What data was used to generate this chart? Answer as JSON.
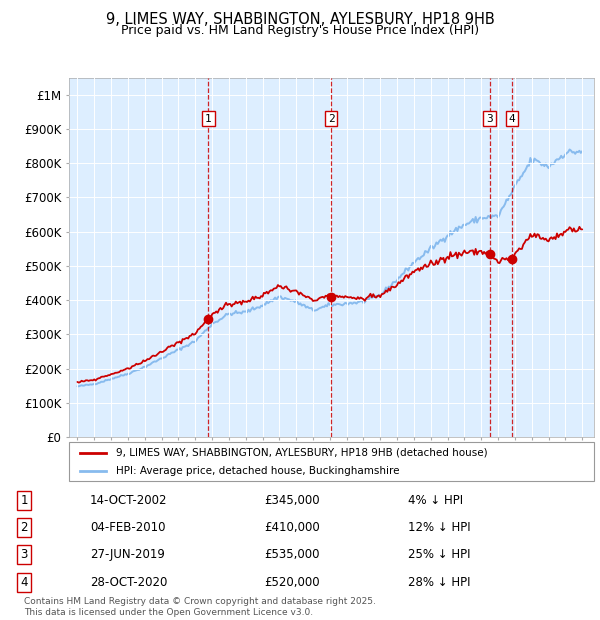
{
  "title": "9, LIMES WAY, SHABBINGTON, AYLESBURY, HP18 9HB",
  "subtitle": "Price paid vs. HM Land Registry's House Price Index (HPI)",
  "ylim": [
    0,
    1050000
  ],
  "yticks": [
    0,
    100000,
    200000,
    300000,
    400000,
    500000,
    600000,
    700000,
    800000,
    900000,
    1000000
  ],
  "ytick_labels": [
    "£0",
    "£100K",
    "£200K",
    "£300K",
    "£400K",
    "£500K",
    "£600K",
    "£700K",
    "£800K",
    "£900K",
    "£1M"
  ],
  "background_color": "#ffffff",
  "plot_bg_color": "#ddeeff",
  "grid_color": "#ffffff",
  "hpi_color": "#88bbee",
  "price_color": "#cc0000",
  "sale_decimal": [
    2002.79,
    2010.09,
    2019.49,
    2020.83
  ],
  "sale_prices": [
    345000,
    410000,
    535000,
    520000
  ],
  "sale_labels": [
    "1",
    "2",
    "3",
    "4"
  ],
  "legend_price_label": "9, LIMES WAY, SHABBINGTON, AYLESBURY, HP18 9HB (detached house)",
  "legend_hpi_label": "HPI: Average price, detached house, Buckinghamshire",
  "footer": "Contains HM Land Registry data © Crown copyright and database right 2025.\nThis data is licensed under the Open Government Licence v3.0.",
  "xlim_start": 1994.5,
  "xlim_end": 2025.7,
  "hpi_key_years": {
    "1995": 148000,
    "1996": 155000,
    "1997": 170000,
    "1998": 185000,
    "1999": 205000,
    "2000": 230000,
    "2001": 255000,
    "2002": 280000,
    "2003": 330000,
    "2004": 360000,
    "2005": 365000,
    "2006": 385000,
    "2007": 410000,
    "2008": 395000,
    "2009": 370000,
    "2010": 385000,
    "2011": 390000,
    "2012": 395000,
    "2013": 415000,
    "2014": 460000,
    "2015": 510000,
    "2016": 550000,
    "2017": 590000,
    "2018": 620000,
    "2019": 640000,
    "2020": 645000,
    "2021": 730000,
    "2022": 810000,
    "2023": 790000,
    "2024": 830000,
    "2025": 835000
  },
  "price_key_years": {
    "1995": 148000,
    "1996": 152000,
    "1997": 165000,
    "1998": 178000,
    "1999": 196000,
    "2000": 218000,
    "2001": 242000,
    "2002": 265000,
    "2003": 310000,
    "2004": 340000,
    "2005": 345000,
    "2006": 360000,
    "2007": 385000,
    "2008": 480000,
    "2009": 410000,
    "2010": 415000,
    "2011": 420000,
    "2012": 430000,
    "2013": 450000,
    "2014": 480000,
    "2015": 505000,
    "2016": 540000,
    "2017": 580000,
    "2018": 620000,
    "2019": 630000,
    "2020": 540000,
    "2021": 545000,
    "2022": 600000,
    "2023": 575000,
    "2024": 590000,
    "2025": 600000
  }
}
